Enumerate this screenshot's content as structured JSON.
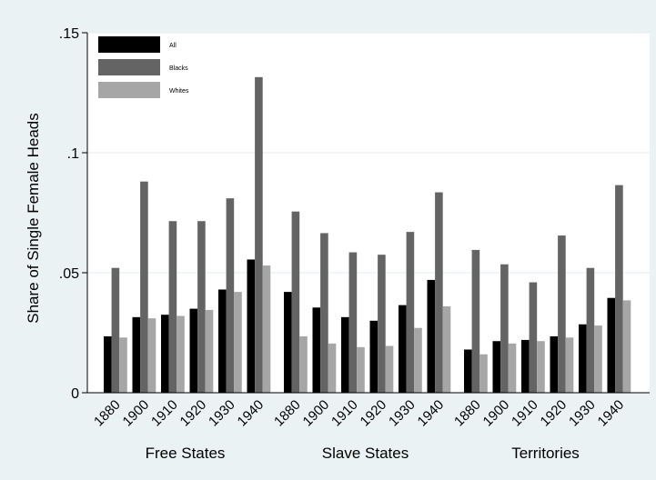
{
  "colors": {
    "background": "#eaf2f3",
    "plot_background": "#ffffff",
    "all": "#000000",
    "blacks": "#646464",
    "whites": "#a6a6a6",
    "gridline": "#e6eef0"
  },
  "chart_data": {
    "type": "bar",
    "title": "",
    "ylabel": "Share of Single Female Heads",
    "xlabel": "",
    "ylim": [
      0,
      0.15
    ],
    "yticks": [
      0,
      0.05,
      0.1,
      0.15
    ],
    "ytick_labels": [
      "0",
      ".05",
      ".1",
      ".15"
    ],
    "grid": true,
    "legend_position": "top-left",
    "groups": [
      {
        "name": "Free States",
        "categories": [
          "1880",
          "1900",
          "1910",
          "1920",
          "1930",
          "1940"
        ],
        "series": [
          {
            "name": "All",
            "values": [
              0.0235,
              0.0315,
              0.0325,
              0.035,
              0.043,
              0.0555
            ]
          },
          {
            "name": "Blacks",
            "values": [
              0.052,
              0.088,
              0.0715,
              0.0715,
              0.081,
              0.1315
            ]
          },
          {
            "name": "Whites",
            "values": [
              0.023,
              0.031,
              0.032,
              0.0345,
              0.042,
              0.053
            ]
          }
        ]
      },
      {
        "name": "Slave States",
        "categories": [
          "1880",
          "1900",
          "1910",
          "1920",
          "1930",
          "1940"
        ],
        "series": [
          {
            "name": "All",
            "values": [
              0.042,
              0.0355,
              0.0315,
              0.03,
              0.0365,
              0.047
            ]
          },
          {
            "name": "Blacks",
            "values": [
              0.0755,
              0.0665,
              0.0585,
              0.0575,
              0.067,
              0.0835
            ]
          },
          {
            "name": "Whites",
            "values": [
              0.0235,
              0.0205,
              0.019,
              0.0195,
              0.027,
              0.036
            ]
          }
        ]
      },
      {
        "name": "Territories",
        "categories": [
          "1880",
          "1900",
          "1910",
          "1920",
          "1930",
          "1940"
        ],
        "series": [
          {
            "name": "All",
            "values": [
              0.018,
              0.0215,
              0.022,
              0.0235,
              0.0285,
              0.0395
            ]
          },
          {
            "name": "Blacks",
            "values": [
              0.0595,
              0.0535,
              0.046,
              0.0655,
              0.052,
              0.0865
            ]
          },
          {
            "name": "Whites",
            "values": [
              0.016,
              0.0205,
              0.0215,
              0.023,
              0.028,
              0.0385
            ]
          }
        ]
      }
    ],
    "legend": [
      "All",
      "Blacks",
      "Whites"
    ]
  }
}
